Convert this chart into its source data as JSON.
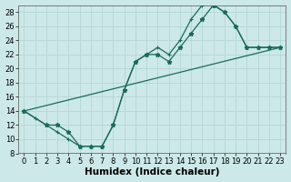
{
  "xlabel": "Humidex (Indice chaleur)",
  "background_color": "#cce8e8",
  "grid_color": "#b8d8d8",
  "line_color": "#1a6b5a",
  "xlim": [
    -0.5,
    23.5
  ],
  "ylim": [
    8,
    29
  ],
  "xticks": [
    0,
    1,
    2,
    3,
    4,
    5,
    6,
    7,
    8,
    9,
    10,
    11,
    12,
    13,
    14,
    15,
    16,
    17,
    18,
    19,
    20,
    21,
    22,
    23
  ],
  "yticks": [
    8,
    10,
    12,
    14,
    16,
    18,
    20,
    22,
    24,
    26,
    28
  ],
  "line1_x": [
    0,
    1,
    2,
    3,
    4,
    5,
    6,
    7,
    8,
    9,
    10,
    11,
    12,
    13,
    14,
    15,
    16,
    17,
    18,
    19,
    20,
    21,
    22,
    23
  ],
  "line1_y": [
    14,
    13,
    12,
    11,
    10,
    9,
    9,
    9,
    12,
    17,
    21,
    22,
    23,
    22,
    24,
    27,
    29,
    29,
    28,
    26,
    23,
    23,
    23,
    23
  ],
  "line2_x": [
    0,
    2,
    3,
    4,
    5,
    6,
    7,
    8,
    9,
    10,
    11,
    12,
    13,
    14,
    15,
    16,
    17,
    18,
    19,
    20,
    21,
    22,
    23
  ],
  "line2_y": [
    14,
    12,
    12,
    11,
    9,
    9,
    9,
    12,
    17,
    21,
    22,
    22,
    21,
    23,
    25,
    27,
    29,
    28,
    26,
    23,
    23,
    23,
    23
  ],
  "line3_x": [
    0,
    23
  ],
  "line3_y": [
    14,
    23
  ],
  "tick_fontsize": 6,
  "xlabel_fontsize": 7.5
}
